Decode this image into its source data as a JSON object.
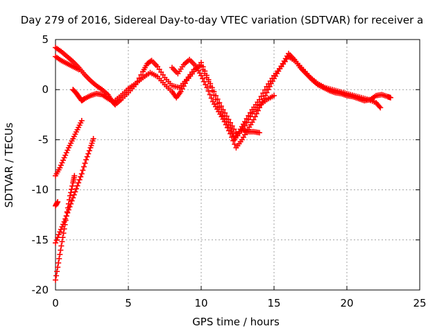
{
  "chart_data": {
    "type": "scatter",
    "title": "Day 279 of 2016, Sidereal Day-to-day VTEC variation (SDTVAR) for receiver a",
    "xlabel": "GPS time / hours",
    "ylabel": "SDTVAR / TECUs",
    "xlim": [
      0,
      25
    ],
    "ylim": [
      -20,
      5
    ],
    "xticks": [
      0,
      5,
      10,
      15,
      20,
      25
    ],
    "yticks": [
      -20,
      -15,
      -10,
      -5,
      0,
      5
    ],
    "grid": true,
    "marker": "+",
    "series": [
      {
        "name": "SDTVAR",
        "color": "#ff0000",
        "segments": [
          [
            [
              0,
              4.2
            ],
            [
              0.4,
              3.8
            ],
            [
              0.8,
              3.3
            ],
            [
              1.2,
              2.8
            ],
            [
              1.6,
              2.2
            ],
            [
              2.0,
              1.5
            ],
            [
              2.4,
              0.9
            ],
            [
              2.8,
              0.4
            ],
            [
              3.2,
              0
            ],
            [
              3.6,
              -0.5
            ],
            [
              3.9,
              -1.2
            ],
            [
              4.1,
              -1.5
            ],
            [
              4.5,
              -1.0
            ],
            [
              5.0,
              -0.3
            ],
            [
              5.5,
              0.5
            ],
            [
              6.0,
              1.8
            ],
            [
              6.3,
              2.6
            ],
            [
              6.6,
              2.9
            ],
            [
              7.0,
              2.3
            ],
            [
              7.5,
              1.2
            ],
            [
              8.0,
              0.4
            ],
            [
              8.5,
              0.2
            ],
            [
              9.0,
              1.0
            ],
            [
              9.5,
              2.0
            ],
            [
              10.0,
              2.4
            ],
            [
              10.5,
              0.8
            ],
            [
              11.0,
              -1.0
            ],
            [
              11.5,
              -2.6
            ],
            [
              12.0,
              -3.8
            ],
            [
              12.3,
              -5.0
            ],
            [
              12.6,
              -4.2
            ],
            [
              13.0,
              -3.2
            ],
            [
              13.5,
              -2.0
            ],
            [
              14.0,
              -1.0
            ],
            [
              14.5,
              0.3
            ],
            [
              15.0,
              1.4
            ],
            [
              15.5,
              2.3
            ],
            [
              16.0,
              3.3
            ],
            [
              16.5,
              2.8
            ],
            [
              17.0,
              2.0
            ],
            [
              17.5,
              1.2
            ],
            [
              18.0,
              0.6
            ],
            [
              18.5,
              0.2
            ],
            [
              19.0,
              0
            ],
            [
              19.5,
              -0.2
            ],
            [
              20.0,
              -0.4
            ],
            [
              20.5,
              -0.6
            ],
            [
              21.0,
              -0.8
            ],
            [
              21.5,
              -1.0
            ],
            [
              22.0,
              -1.3
            ],
            [
              22.3,
              -1.8
            ]
          ],
          [
            [
              0,
              3.3
            ],
            [
              0.4,
              2.9
            ],
            [
              0.8,
              2.6
            ],
            [
              1.2,
              2.3
            ],
            [
              1.6,
              2.0
            ]
          ],
          [
            [
              1.2,
              0
            ],
            [
              1.4,
              -0.3
            ],
            [
              1.6,
              -0.7
            ],
            [
              1.8,
              -1.1
            ],
            [
              2.0,
              -0.9
            ],
            [
              2.4,
              -0.6
            ],
            [
              2.8,
              -0.4
            ],
            [
              3.2,
              -0.5
            ],
            [
              3.6,
              -0.9
            ],
            [
              4.0,
              -1.2
            ],
            [
              4.5,
              -0.6
            ],
            [
              5.0,
              0.1
            ],
            [
              5.5,
              0.6
            ],
            [
              6.0,
              1.2
            ],
            [
              6.5,
              1.7
            ],
            [
              7.0,
              1.3
            ],
            [
              7.5,
              0.5
            ],
            [
              8.0,
              -0.2
            ],
            [
              8.3,
              -0.8
            ],
            [
              8.6,
              -0.2
            ],
            [
              9.0,
              0.9
            ],
            [
              9.5,
              1.8
            ],
            [
              10.0,
              2.7
            ],
            [
              10.5,
              1.0
            ],
            [
              11.0,
              -0.6
            ],
            [
              11.5,
              -2.0
            ],
            [
              12.0,
              -3.3
            ],
            [
              12.5,
              -4.6
            ],
            [
              13.0,
              -3.6
            ],
            [
              13.5,
              -2.4
            ],
            [
              14.0,
              -1.6
            ],
            [
              14.5,
              -1.0
            ],
            [
              15.0,
              -0.6
            ]
          ],
          [
            [
              8.0,
              2.2
            ],
            [
              8.4,
              1.6
            ],
            [
              8.8,
              2.5
            ],
            [
              9.2,
              3.0
            ],
            [
              9.6,
              2.4
            ],
            [
              10.0,
              1.4
            ],
            [
              10.4,
              0.2
            ],
            [
              10.8,
              -1.2
            ],
            [
              11.2,
              -2.2
            ],
            [
              11.6,
              -3.2
            ],
            [
              12.0,
              -4.4
            ],
            [
              12.4,
              -5.8
            ],
            [
              12.8,
              -5.0
            ],
            [
              13.2,
              -4.0
            ],
            [
              13.6,
              -3.0
            ],
            [
              14.0,
              -1.8
            ],
            [
              14.4,
              -0.6
            ],
            [
              14.8,
              0.6
            ],
            [
              15.2,
              1.6
            ],
            [
              15.6,
              2.6
            ],
            [
              16.0,
              3.6
            ],
            [
              16.4,
              3.0
            ],
            [
              16.8,
              2.2
            ],
            [
              17.2,
              1.6
            ],
            [
              17.6,
              1.0
            ],
            [
              18.0,
              0.5
            ],
            [
              18.4,
              0.2
            ],
            [
              18.8,
              -0.1
            ],
            [
              19.2,
              -0.3
            ],
            [
              19.6,
              -0.4
            ],
            [
              20.0,
              -0.6
            ],
            [
              20.4,
              -0.7
            ],
            [
              20.8,
              -0.9
            ],
            [
              21.2,
              -1.1
            ],
            [
              21.6,
              -1.0
            ],
            [
              22.0,
              -0.6
            ],
            [
              22.4,
              -0.5
            ],
            [
              22.8,
              -0.7
            ],
            [
              23.0,
              -0.8
            ]
          ],
          [
            [
              12.8,
              -4.0
            ],
            [
              13.2,
              -4.2
            ],
            [
              13.6,
              -4.2
            ],
            [
              14.0,
              -4.3
            ]
          ],
          [
            [
              0,
              -8.6
            ],
            [
              0.3,
              -7.8
            ],
            [
              0.6,
              -6.8
            ],
            [
              0.9,
              -5.8
            ],
            [
              1.2,
              -4.9
            ],
            [
              1.5,
              -4.0
            ],
            [
              1.8,
              -3.1
            ]
          ],
          [
            [
              0,
              -15.3
            ],
            [
              0.3,
              -14.2
            ],
            [
              0.6,
              -13.2
            ],
            [
              0.9,
              -12.0
            ],
            [
              1.2,
              -10.8
            ],
            [
              1.5,
              -9.6
            ],
            [
              1.8,
              -8.4
            ],
            [
              2.1,
              -7.0
            ],
            [
              2.4,
              -5.8
            ],
            [
              2.6,
              -4.9
            ]
          ],
          [
            [
              0,
              -11.6
            ],
            [
              0.15,
              -11.2
            ]
          ],
          [
            [
              0,
              -19.0
            ],
            [
              0.2,
              -17.3
            ],
            [
              0.4,
              -15.6
            ],
            [
              0.6,
              -13.9
            ],
            [
              0.8,
              -12.2
            ],
            [
              1.0,
              -10.6
            ],
            [
              1.2,
              -9.3
            ],
            [
              1.3,
              -8.6
            ]
          ]
        ]
      }
    ]
  }
}
